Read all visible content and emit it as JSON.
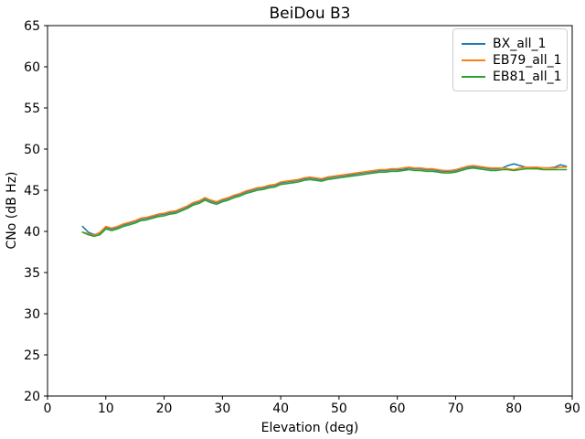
{
  "chart_data": {
    "type": "line",
    "title": "BeiDou B3",
    "xlabel": "Elevation (deg)",
    "ylabel": "CNo (dB Hz)",
    "xlim": [
      0,
      90
    ],
    "ylim": [
      20,
      65
    ],
    "xticks": [
      0,
      10,
      20,
      30,
      40,
      50,
      60,
      70,
      80,
      90
    ],
    "yticks": [
      20,
      25,
      30,
      35,
      40,
      45,
      50,
      55,
      60,
      65
    ],
    "grid": false,
    "legend_position": "upper right",
    "x": [
      6,
      7,
      8,
      9,
      10,
      11,
      12,
      13,
      14,
      15,
      16,
      17,
      18,
      19,
      20,
      21,
      22,
      23,
      24,
      25,
      26,
      27,
      28,
      29,
      30,
      31,
      32,
      33,
      34,
      35,
      36,
      37,
      38,
      39,
      40,
      41,
      42,
      43,
      44,
      45,
      46,
      47,
      48,
      49,
      50,
      51,
      52,
      53,
      54,
      55,
      56,
      57,
      58,
      59,
      60,
      61,
      62,
      63,
      64,
      65,
      66,
      67,
      68,
      69,
      70,
      71,
      72,
      73,
      74,
      75,
      76,
      77,
      78,
      79,
      80,
      81,
      82,
      83,
      84,
      85,
      86,
      87,
      88,
      89
    ],
    "series": [
      {
        "name": "BX_all_1",
        "color": "#1f77b4",
        "values": [
          40.6,
          39.9,
          39.6,
          39.8,
          40.5,
          40.3,
          40.5,
          40.8,
          41.0,
          41.2,
          41.5,
          41.6,
          41.8,
          42.0,
          42.1,
          42.3,
          42.4,
          42.7,
          43.0,
          43.4,
          43.6,
          44.0,
          43.7,
          43.5,
          43.8,
          44.0,
          44.3,
          44.5,
          44.8,
          45.0,
          45.2,
          45.3,
          45.5,
          45.6,
          45.9,
          46.0,
          46.1,
          46.2,
          46.4,
          46.5,
          46.4,
          46.3,
          46.5,
          46.6,
          46.7,
          46.8,
          46.9,
          47.0,
          47.1,
          47.2,
          47.3,
          47.4,
          47.4,
          47.5,
          47.5,
          47.5,
          47.7,
          47.6,
          47.6,
          47.5,
          47.5,
          47.4,
          47.3,
          47.3,
          47.4,
          47.6,
          47.8,
          47.9,
          47.8,
          47.7,
          47.6,
          47.6,
          47.7,
          48.0,
          48.2,
          48.0,
          47.8,
          47.8,
          47.7,
          47.7,
          47.7,
          47.8,
          48.1,
          47.9
        ]
      },
      {
        "name": "EB79_all_1",
        "color": "#ff7f0e",
        "values": [
          39.9,
          39.7,
          39.5,
          39.9,
          40.6,
          40.4,
          40.6,
          40.9,
          41.1,
          41.3,
          41.6,
          41.7,
          41.9,
          42.1,
          42.2,
          42.4,
          42.5,
          42.8,
          43.1,
          43.5,
          43.7,
          44.1,
          43.8,
          43.6,
          43.9,
          44.1,
          44.4,
          44.6,
          44.9,
          45.1,
          45.3,
          45.4,
          45.6,
          45.7,
          46.0,
          46.1,
          46.2,
          46.3,
          46.5,
          46.6,
          46.5,
          46.4,
          46.6,
          46.7,
          46.8,
          46.9,
          47.0,
          47.1,
          47.2,
          47.3,
          47.4,
          47.5,
          47.5,
          47.6,
          47.6,
          47.7,
          47.8,
          47.7,
          47.7,
          47.6,
          47.6,
          47.5,
          47.4,
          47.4,
          47.5,
          47.7,
          47.9,
          48.0,
          47.9,
          47.8,
          47.7,
          47.7,
          47.7,
          47.6,
          47.5,
          47.7,
          47.8,
          47.8,
          47.8,
          47.7,
          47.7,
          47.7,
          47.8,
          47.8
        ]
      },
      {
        "name": "EB81_all_1",
        "color": "#2ca02c",
        "values": [
          39.9,
          39.6,
          39.4,
          39.6,
          40.3,
          40.1,
          40.3,
          40.6,
          40.8,
          41.0,
          41.3,
          41.4,
          41.6,
          41.8,
          41.9,
          42.1,
          42.2,
          42.5,
          42.8,
          43.2,
          43.4,
          43.8,
          43.5,
          43.3,
          43.6,
          43.8,
          44.1,
          44.3,
          44.6,
          44.8,
          45.0,
          45.1,
          45.3,
          45.4,
          45.7,
          45.8,
          45.9,
          46.0,
          46.2,
          46.3,
          46.2,
          46.1,
          46.3,
          46.4,
          46.5,
          46.6,
          46.7,
          46.8,
          46.9,
          47.0,
          47.1,
          47.2,
          47.2,
          47.3,
          47.3,
          47.4,
          47.5,
          47.4,
          47.4,
          47.3,
          47.3,
          47.2,
          47.1,
          47.1,
          47.2,
          47.4,
          47.6,
          47.7,
          47.6,
          47.5,
          47.4,
          47.4,
          47.5,
          47.5,
          47.4,
          47.5,
          47.6,
          47.6,
          47.6,
          47.5,
          47.5,
          47.5,
          47.5,
          47.5
        ]
      }
    ]
  }
}
